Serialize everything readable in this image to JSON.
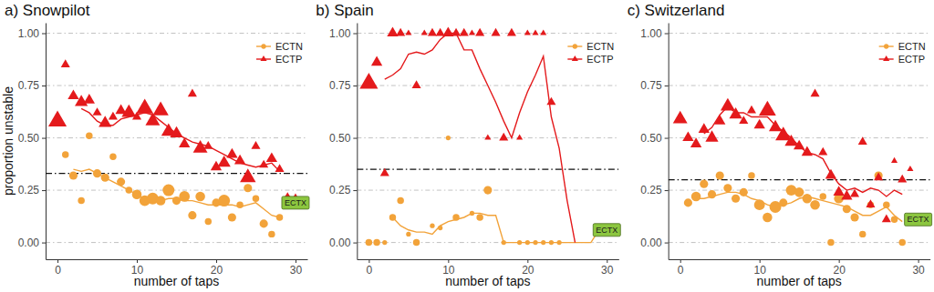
{
  "chart_data": [
    {
      "type": "scatter",
      "title": "a) Snowpilot",
      "x_label": "number of taps",
      "y_label": "proportion unstable",
      "xlim": [
        -1.5,
        31.5
      ],
      "ylim": [
        -0.08,
        1.05
      ],
      "xticks": [
        0,
        10,
        20,
        30
      ],
      "yticks": [
        {
          "value": 0,
          "label": "0.00"
        },
        {
          "value": 0.25,
          "label": "0.25"
        },
        {
          "value": 0.5,
          "label": "0.50"
        },
        {
          "value": 0.75,
          "label": "0.75"
        },
        {
          "value": 1,
          "label": "1.00"
        }
      ],
      "grid": true,
      "legend": "top-right",
      "reference_line": {
        "value": 0.33,
        "line_style": "dashdot"
      },
      "ectx": {
        "label": "ECTX",
        "x": 30,
        "value": 0.19
      },
      "series": [
        {
          "name": "ECTN",
          "color": "#f2a33a",
          "marker": "circle",
          "x": [
            1,
            2,
            3,
            4,
            5,
            6,
            7,
            8,
            9,
            10,
            11,
            12,
            13,
            14,
            15,
            16,
            17,
            18,
            19,
            20,
            21,
            22,
            23,
            24,
            25,
            26,
            27,
            28,
            29
          ],
          "values": [
            0.42,
            0.32,
            0.2,
            0.51,
            0.33,
            0.31,
            0.41,
            0.29,
            0.25,
            0.23,
            0.2,
            0.21,
            0.2,
            0.25,
            0.2,
            0.22,
            0.13,
            0.22,
            0.1,
            0.19,
            0.2,
            0.12,
            0.18,
            0.26,
            0.21,
            0.09,
            0.04,
            0.12,
            0.21
          ],
          "size": [
            2,
            3,
            2,
            2,
            3,
            3,
            2,
            3,
            2,
            4,
            5,
            6,
            4,
            6,
            3,
            5,
            3,
            4,
            2,
            3,
            6,
            3,
            2,
            3,
            2,
            3,
            2,
            2,
            2
          ],
          "trend_x": [
            2,
            3,
            4,
            5,
            6,
            7,
            8,
            9,
            10,
            11,
            12,
            13,
            14,
            15,
            16,
            17,
            18,
            19,
            20,
            21,
            22,
            23,
            24,
            25,
            26,
            27,
            28
          ],
          "trend": [
            0.35,
            0.34,
            0.35,
            0.33,
            0.31,
            0.29,
            0.27,
            0.25,
            0.23,
            0.21,
            0.2,
            0.2,
            0.21,
            0.21,
            0.2,
            0.2,
            0.19,
            0.18,
            0.18,
            0.18,
            0.18,
            0.17,
            0.18,
            0.19,
            0.16,
            0.13,
            0.12
          ]
        },
        {
          "name": "ECTP",
          "color": "#e41a1c",
          "marker": "triangle",
          "x": [
            0,
            1,
            2,
            3,
            4,
            5,
            6,
            7,
            8,
            9,
            10,
            11,
            12,
            13,
            14,
            15,
            16,
            17,
            18,
            19,
            20,
            21,
            22,
            23,
            24,
            25,
            26,
            27,
            28,
            29,
            30
          ],
          "values": [
            0.58,
            0.85,
            0.7,
            0.67,
            0.68,
            0.62,
            0.57,
            0.6,
            0.63,
            0.62,
            0.6,
            0.64,
            0.58,
            0.63,
            0.53,
            0.52,
            0.47,
            0.71,
            0.45,
            0.46,
            0.36,
            0.38,
            0.42,
            0.39,
            0.31,
            0.46,
            0.37,
            0.4,
            0.35,
            0.21,
            0.21
          ],
          "size": [
            8,
            2,
            3,
            4,
            3,
            2,
            4,
            2,
            3,
            5,
            2,
            7,
            5,
            6,
            5,
            4,
            3,
            2,
            5,
            2,
            3,
            4,
            3,
            3,
            6,
            2,
            2,
            3,
            2,
            3,
            2
          ],
          "trend_x": [
            3,
            4,
            5,
            6,
            7,
            8,
            9,
            10,
            11,
            12,
            13,
            14,
            15,
            16,
            17,
            18,
            19,
            20,
            21,
            22,
            23,
            24,
            25,
            26,
            27,
            28
          ],
          "trend": [
            0.64,
            0.62,
            0.58,
            0.56,
            0.56,
            0.59,
            0.6,
            0.61,
            0.62,
            0.61,
            0.58,
            0.55,
            0.52,
            0.5,
            0.48,
            0.47,
            0.46,
            0.44,
            0.42,
            0.4,
            0.38,
            0.37,
            0.36,
            0.37,
            0.38,
            0.34
          ]
        }
      ]
    },
    {
      "type": "scatter",
      "title": "b) Spain",
      "x_label": "number of taps",
      "xlim": [
        -1.5,
        31.5
      ],
      "ylim": [
        -0.08,
        1.05
      ],
      "xticks": [
        0,
        10,
        20,
        30
      ],
      "yticks": [
        {
          "value": 0,
          "label": "0.00"
        },
        {
          "value": 0.25,
          "label": "0.25"
        },
        {
          "value": 0.5,
          "label": "0.50"
        },
        {
          "value": 0.75,
          "label": "0.75"
        },
        {
          "value": 1,
          "label": "1.00"
        }
      ],
      "grid": true,
      "legend": "top-right",
      "reference_line": {
        "value": 0.35,
        "line_style": "dashdot"
      },
      "ectx": {
        "label": "ECTX",
        "x": 30,
        "value": 0.06
      },
      "series": [
        {
          "name": "ECTN",
          "color": "#f2a33a",
          "marker": "circle",
          "x": [
            0,
            1,
            2,
            3,
            4,
            5,
            6,
            8,
            9,
            10,
            11,
            13,
            14,
            15,
            17,
            19,
            20,
            21,
            22,
            23,
            24
          ],
          "values": [
            0,
            0,
            0,
            0.12,
            0.2,
            0.04,
            0,
            0.08,
            0.07,
            0.5,
            0.12,
            0.14,
            0.12,
            0.25,
            0,
            0,
            0,
            0,
            0,
            0,
            0
          ],
          "size": [
            2,
            2,
            1,
            2,
            2,
            1,
            2,
            1,
            1,
            1,
            2,
            1,
            2,
            3,
            1,
            1,
            1,
            1,
            1,
            1,
            1
          ],
          "trend_x": [
            3,
            4,
            5,
            6,
            7,
            8,
            9,
            10,
            11,
            12,
            13,
            14,
            15,
            16,
            17,
            18,
            19,
            20,
            21,
            22,
            23,
            24,
            25,
            26,
            27,
            28,
            29
          ],
          "trend": [
            0.12,
            0.08,
            0.06,
            0.05,
            0.05,
            0.04,
            0.08,
            0.1,
            0.11,
            0.12,
            0.14,
            0.14,
            0.13,
            0.13,
            0,
            0,
            0,
            0,
            0,
            0,
            0,
            0,
            0,
            0,
            0,
            0,
            0.06
          ]
        },
        {
          "name": "ECTP",
          "color": "#e41a1c",
          "marker": "triangle",
          "x": [
            0,
            1,
            2,
            3,
            4,
            5,
            6,
            7,
            8,
            9,
            10,
            11,
            12,
            13,
            14,
            15,
            16,
            17,
            18,
            19,
            20,
            21,
            22,
            23
          ],
          "values": [
            0.76,
            0.86,
            0.33,
            1,
            1,
            1,
            0.75,
            1,
            1,
            1,
            1,
            1,
            1,
            1,
            1,
            0.5,
            1,
            0.5,
            1,
            0.5,
            1,
            1,
            1,
            0.67
          ],
          "size": [
            8,
            3,
            2,
            3,
            2,
            1,
            2,
            1,
            2,
            2,
            3,
            2,
            2,
            1,
            2,
            1,
            2,
            2,
            2,
            1,
            1,
            1,
            1,
            2
          ],
          "trend_x": [
            2,
            3,
            4,
            5,
            6,
            7,
            8,
            9,
            10,
            11,
            12,
            13,
            14,
            15,
            16,
            17,
            18,
            19,
            20,
            21,
            22,
            23,
            24,
            25,
            26
          ],
          "trend": [
            0.78,
            0.8,
            0.83,
            0.9,
            0.91,
            0.9,
            0.92,
            0.97,
            1,
            1,
            0.92,
            0.92,
            0.83,
            0.75,
            0.67,
            0.58,
            0.5,
            0.62,
            0.72,
            0.8,
            0.89,
            0.6,
            0.45,
            0.2,
            0
          ]
        }
      ]
    },
    {
      "type": "scatter",
      "title": "c) Switzerland",
      "x_label": "number of taps",
      "xlim": [
        -1.5,
        31.5
      ],
      "ylim": [
        -0.08,
        1.05
      ],
      "xticks": [
        0,
        10,
        20,
        30
      ],
      "yticks": [
        {
          "value": 0,
          "label": "0.00"
        },
        {
          "value": 0.25,
          "label": "0.25"
        },
        {
          "value": 0.5,
          "label": "0.50"
        },
        {
          "value": 0.75,
          "label": "0.75"
        },
        {
          "value": 1,
          "label": "1.00"
        }
      ],
      "grid": true,
      "legend": "top-right",
      "reference_line": {
        "value": 0.3,
        "line_style": "dashdot"
      },
      "ectx": {
        "label": "ECTX",
        "x": 30,
        "value": 0.11
      },
      "series": [
        {
          "name": "ECTN",
          "color": "#f2a33a",
          "marker": "circle",
          "x": [
            1,
            2,
            3,
            4,
            5,
            6,
            7,
            8,
            9,
            10,
            11,
            12,
            13,
            14,
            15,
            16,
            17,
            18,
            19,
            20,
            21,
            22,
            23,
            24,
            25,
            26,
            27,
            28
          ],
          "values": [
            0.19,
            0.22,
            0.28,
            0.23,
            0.32,
            0.26,
            0.21,
            0.24,
            0.32,
            0.18,
            0.12,
            0.17,
            0.19,
            0.25,
            0.24,
            0.21,
            0.18,
            0.22,
            0,
            0.21,
            0.16,
            0.12,
            0.04,
            0.18,
            0.32,
            0.18,
            0.11,
            0
          ],
          "size": [
            3,
            4,
            3,
            3,
            3,
            3,
            3,
            3,
            2,
            5,
            4,
            6,
            3,
            5,
            4,
            4,
            4,
            2,
            2,
            4,
            3,
            3,
            2,
            2,
            3,
            2,
            2,
            2
          ],
          "trend_x": [
            2,
            3,
            4,
            5,
            6,
            7,
            8,
            9,
            10,
            11,
            12,
            13,
            14,
            15,
            16,
            17,
            18,
            19,
            20,
            21,
            22,
            23,
            24,
            25,
            26,
            27,
            28
          ],
          "trend": [
            0.21,
            0.21,
            0.22,
            0.23,
            0.24,
            0.24,
            0.23,
            0.21,
            0.2,
            0.18,
            0.17,
            0.18,
            0.19,
            0.21,
            0.22,
            0.21,
            0.2,
            0.19,
            0.18,
            0.17,
            0.15,
            0.13,
            0.13,
            0.15,
            0.17,
            0.13,
            0.1
          ]
        },
        {
          "name": "ECTP",
          "color": "#e41a1c",
          "marker": "triangle",
          "x": [
            0,
            1,
            2,
            3,
            4,
            5,
            6,
            7,
            8,
            9,
            10,
            11,
            12,
            13,
            14,
            15,
            16,
            17,
            18,
            19,
            20,
            21,
            22,
            23,
            24,
            25,
            26,
            27,
            28,
            29
          ],
          "values": [
            0.59,
            0.5,
            0.47,
            0.54,
            0.5,
            0.58,
            0.65,
            0.61,
            0.58,
            0.63,
            0.56,
            0.63,
            0.55,
            0.51,
            0.48,
            0.46,
            0.43,
            0.71,
            0.43,
            0.32,
            0.24,
            0.22,
            0.23,
            0.48,
            0.18,
            0.31,
            0.11,
            0.39,
            0.3,
            0.35
          ],
          "size": [
            5,
            3,
            3,
            3,
            4,
            3,
            5,
            4,
            2,
            2,
            3,
            7,
            4,
            6,
            4,
            3,
            3,
            2,
            2,
            3,
            3,
            3,
            2,
            2,
            2,
            2,
            2,
            1,
            2,
            1
          ],
          "trend_x": [
            3,
            4,
            5,
            6,
            7,
            8,
            9,
            10,
            11,
            12,
            13,
            14,
            15,
            16,
            17,
            18,
            19,
            20,
            21,
            22,
            23,
            24,
            25,
            26,
            27,
            28
          ],
          "trend": [
            0.52,
            0.55,
            0.61,
            0.65,
            0.62,
            0.62,
            0.6,
            0.6,
            0.6,
            0.56,
            0.53,
            0.5,
            0.46,
            0.43,
            0.42,
            0.4,
            0.33,
            0.28,
            0.25,
            0.26,
            0.24,
            0.26,
            0.25,
            0.22,
            0.25,
            0.23
          ]
        }
      ]
    }
  ]
}
